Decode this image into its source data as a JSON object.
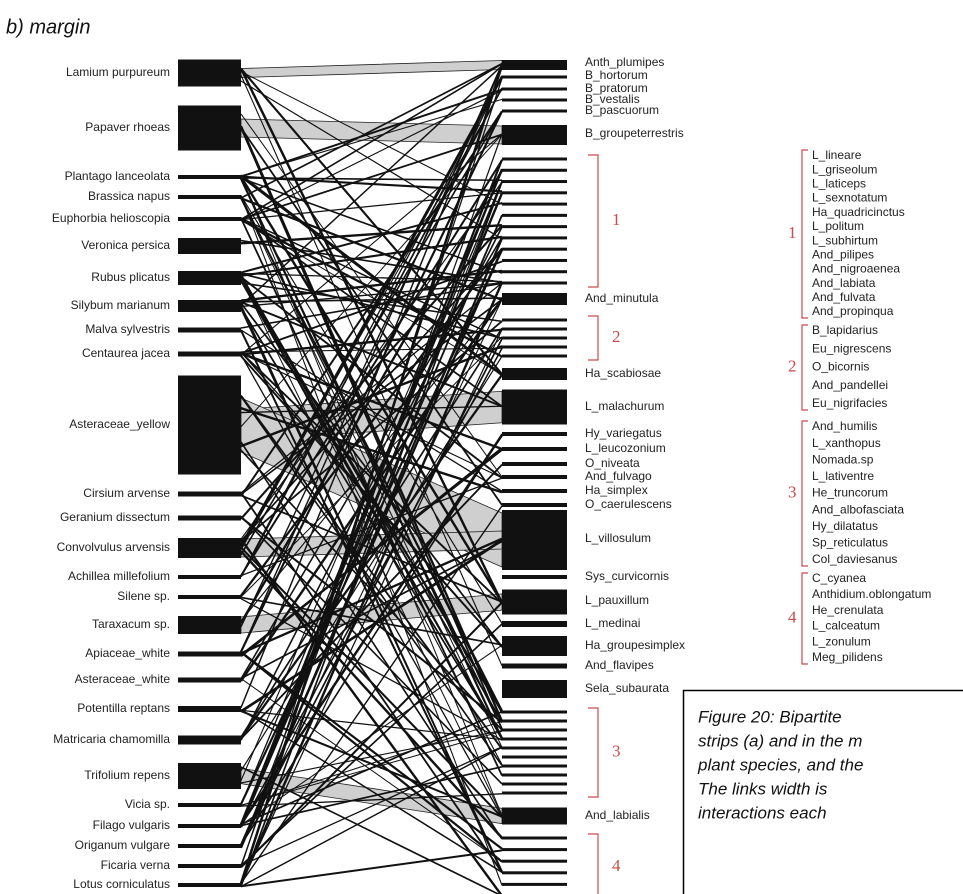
{
  "figure": {
    "title": "b) margin",
    "plants": [
      "Lamium purpureum",
      "Papaver rhoeas",
      "Plantago lanceolata",
      "Brassica napus",
      "Euphorbia helioscopia",
      "Veronica persica",
      "Rubus plicatus",
      "Silybum marianum",
      "Malva sylvestris",
      "Centaurea jacea",
      "Asteraceae_yellow",
      "Cirsium arvense",
      "Geranium dissectum",
      "Convolvulus arvensis",
      "Achillea millefolium",
      "Silene sp.",
      "Taraxacum sp.",
      "Apiaceae_white",
      "Asteraceae_white",
      "Potentilla reptans",
      "Matricaria chamomilla",
      "Trifolium repens",
      "Vicia sp.",
      "Filago vulgaris",
      "Origanum vulgare",
      "Ficaria verna",
      "Lotus corniculatus"
    ],
    "pollinators": [
      "Anth_plumipes",
      "B_hortorum",
      "B_pratorum",
      "B_vestalis",
      "B_pascuorum",
      "B_groupeterrestris",
      "And_minutula",
      "Ha_scabiosae",
      "L_malachurum",
      "Hy_variegatus",
      "L_leucozonium",
      "O_niveata",
      "And_fulvago",
      "Ha_simplex",
      "O_caerulescens",
      "L_villosulum",
      "Sys_curvicornis",
      "L_pauxillum",
      "L_medinai",
      "Ha_groupesimplex",
      "And_flavipes",
      "Sela_subaurata",
      "And_labialis"
    ],
    "brackets": [
      "1",
      "2",
      "3",
      "4"
    ],
    "groups": [
      {
        "number": "1",
        "members": [
          "L_lineare",
          "L_griseolum",
          "L_laticeps",
          "L_sexnotatum",
          "Ha_quadricinctus",
          "L_politum",
          "L_subhirtum",
          "And_pilipes",
          "And_nigroaenea",
          "And_labiata",
          "And_fulvata",
          "And_propinqua"
        ]
      },
      {
        "number": "2",
        "members": [
          "B_lapidarius",
          "Eu_nigrescens",
          "O_bicornis",
          "And_pandellei",
          "Eu_nigrifacies"
        ]
      },
      {
        "number": "3",
        "members": [
          "And_humilis",
          "L_xanthopus",
          "Nomada.sp",
          "L_lativentre",
          "He_truncorum",
          "And_albofasciata",
          "Hy_dilatatus",
          "Sp_reticulatus",
          "Col_daviesanus"
        ]
      },
      {
        "number": "4",
        "members": [
          "C_cyanea",
          "Anthidium.oblongatum",
          "He_crenulata",
          "L_calceatum",
          "L_zonulum",
          "Meg_pilidens"
        ]
      }
    ],
    "caption": [
      "Figure 20: Bipartite",
      "strips (a) and in the m",
      "plant species, and the",
      "The links width is",
      "interactions each"
    ]
  }
}
